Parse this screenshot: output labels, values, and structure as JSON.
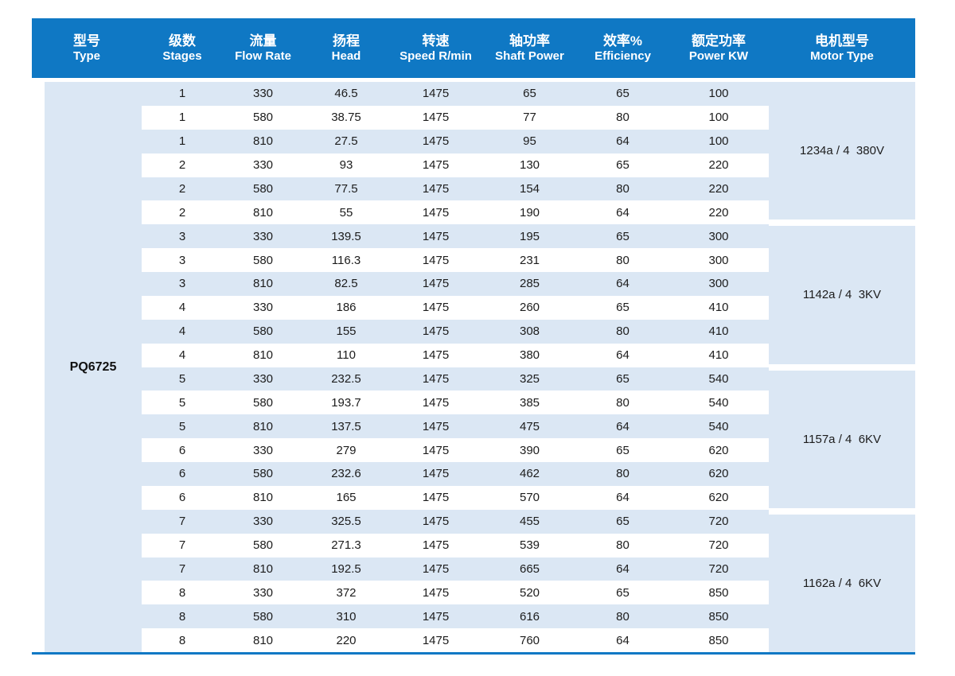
{
  "colors": {
    "accent": "#0f78c4",
    "stripe": "#dbe7f4"
  },
  "table": {
    "columns": [
      {
        "zh": "型号",
        "en": "Type"
      },
      {
        "zh": "级数",
        "en": "Stages"
      },
      {
        "zh": "流量",
        "en": "Flow Rate"
      },
      {
        "zh": "扬程",
        "en": "Head"
      },
      {
        "zh": "转速",
        "en": "Speed R/min"
      },
      {
        "zh": "轴功率",
        "en": "Shaft Power"
      },
      {
        "zh": "效率%",
        "en": "Efficiency"
      },
      {
        "zh": "额定功率",
        "en": "Power KW"
      },
      {
        "zh": "电机型号",
        "en": "Motor Type"
      }
    ],
    "type": "PQ6725",
    "groups": [
      {
        "motor": "1234a / 4  380V",
        "rows": [
          {
            "stages": "1",
            "flow": "330",
            "head": "46.5",
            "speed": "1475",
            "shaft": "65",
            "eff": "65",
            "power": "100"
          },
          {
            "stages": "1",
            "flow": "580",
            "head": "38.75",
            "speed": "1475",
            "shaft": "77",
            "eff": "80",
            "power": "100"
          },
          {
            "stages": "1",
            "flow": "810",
            "head": "27.5",
            "speed": "1475",
            "shaft": "95",
            "eff": "64",
            "power": "100"
          },
          {
            "stages": "2",
            "flow": "330",
            "head": "93",
            "speed": "1475",
            "shaft": "130",
            "eff": "65",
            "power": "220"
          },
          {
            "stages": "2",
            "flow": "580",
            "head": "77.5",
            "speed": "1475",
            "shaft": "154",
            "eff": "80",
            "power": "220"
          },
          {
            "stages": "2",
            "flow": "810",
            "head": "55",
            "speed": "1475",
            "shaft": "190",
            "eff": "64",
            "power": "220"
          }
        ]
      },
      {
        "motor": "1142a / 4  3KV",
        "rows": [
          {
            "stages": "3",
            "flow": "330",
            "head": "139.5",
            "speed": "1475",
            "shaft": "195",
            "eff": "65",
            "power": "300"
          },
          {
            "stages": "3",
            "flow": "580",
            "head": "116.3",
            "speed": "1475",
            "shaft": "231",
            "eff": "80",
            "power": "300"
          },
          {
            "stages": "3",
            "flow": "810",
            "head": "82.5",
            "speed": "1475",
            "shaft": "285",
            "eff": "64",
            "power": "300"
          },
          {
            "stages": "4",
            "flow": "330",
            "head": "186",
            "speed": "1475",
            "shaft": "260",
            "eff": "65",
            "power": "410"
          },
          {
            "stages": "4",
            "flow": "580",
            "head": "155",
            "speed": "1475",
            "shaft": "308",
            "eff": "80",
            "power": "410"
          },
          {
            "stages": "4",
            "flow": "810",
            "head": "110",
            "speed": "1475",
            "shaft": "380",
            "eff": "64",
            "power": "410"
          }
        ]
      },
      {
        "motor": "1157a / 4  6KV",
        "rows": [
          {
            "stages": "5",
            "flow": "330",
            "head": "232.5",
            "speed": "1475",
            "shaft": "325",
            "eff": "65",
            "power": "540"
          },
          {
            "stages": "5",
            "flow": "580",
            "head": "193.7",
            "speed": "1475",
            "shaft": "385",
            "eff": "80",
            "power": "540"
          },
          {
            "stages": "5",
            "flow": "810",
            "head": "137.5",
            "speed": "1475",
            "shaft": "475",
            "eff": "64",
            "power": "540"
          },
          {
            "stages": "6",
            "flow": "330",
            "head": "279",
            "speed": "1475",
            "shaft": "390",
            "eff": "65",
            "power": "620"
          },
          {
            "stages": "6",
            "flow": "580",
            "head": "232.6",
            "speed": "1475",
            "shaft": "462",
            "eff": "80",
            "power": "620"
          },
          {
            "stages": "6",
            "flow": "810",
            "head": "165",
            "speed": "1475",
            "shaft": "570",
            "eff": "64",
            "power": "620"
          }
        ]
      },
      {
        "motor": "1162a / 4  6KV",
        "rows": [
          {
            "stages": "7",
            "flow": "330",
            "head": "325.5",
            "speed": "1475",
            "shaft": "455",
            "eff": "65",
            "power": "720"
          },
          {
            "stages": "7",
            "flow": "580",
            "head": "271.3",
            "speed": "1475",
            "shaft": "539",
            "eff": "80",
            "power": "720"
          },
          {
            "stages": "7",
            "flow": "810",
            "head": "192.5",
            "speed": "1475",
            "shaft": "665",
            "eff": "64",
            "power": "720"
          },
          {
            "stages": "8",
            "flow": "330",
            "head": "372",
            "speed": "1475",
            "shaft": "520",
            "eff": "65",
            "power": "850"
          },
          {
            "stages": "8",
            "flow": "580",
            "head": "310",
            "speed": "1475",
            "shaft": "616",
            "eff": "80",
            "power": "850"
          },
          {
            "stages": "8",
            "flow": "810",
            "head": "220",
            "speed": "1475",
            "shaft": "760",
            "eff": "64",
            "power": "850"
          }
        ]
      }
    ]
  }
}
